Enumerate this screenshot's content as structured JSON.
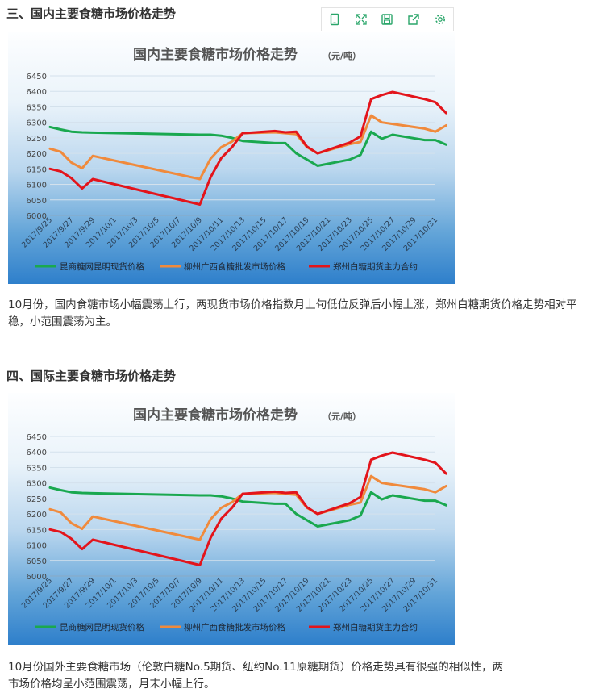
{
  "section3": {
    "heading": "三、国内主要食糖市场价格走势"
  },
  "toolbar": {
    "icons": [
      "tablet-icon",
      "fullscreen-icon",
      "save-icon",
      "share-icon",
      "settings-icon"
    ]
  },
  "paragraph1": "10月份，国内食糖市场小幅震荡上行，两现货市场价格指数月上旬低位反弹后小幅上涨，郑州白糖期货价格走势相对平稳，小范围震荡为主。",
  "section4": {
    "heading": "四、国际主要食糖市场价格走势"
  },
  "paragraph2_line1": "10月份国外主要食糖市场（伦敦白糖No.5期货、纽约No.11原糖期货）价格走势具有很强的相似性，两",
  "paragraph2_line2": "市场价格均呈小范围震荡，月末小幅上行。",
  "chart_data": [
    {
      "type": "line",
      "title": "国内主要食糖市场价格走势",
      "unit": "（元/吨）",
      "x": [
        "2017/9/25",
        "2017/9/26",
        "2017/9/27",
        "2017/9/28",
        "2017/9/29",
        "2017/10/9",
        "2017/10/10",
        "2017/10/11",
        "2017/10/12",
        "2017/10/13",
        "2017/10/16",
        "2017/10/17",
        "2017/10/18",
        "2017/10/19",
        "2017/10/20",
        "2017/10/23",
        "2017/10/24",
        "2017/10/25",
        "2017/10/26",
        "2017/10/27",
        "2017/10/30",
        "2017/10/31",
        "2017/11/1"
      ],
      "xticks": [
        "2017/9/25",
        "2017/9/27",
        "2017/9/29",
        "2017/10/1",
        "2017/10/3",
        "2017/10/5",
        "2017/10/7",
        "2017/10/9",
        "2017/10/11",
        "2017/10/13",
        "2017/10/15",
        "2017/10/17",
        "2017/10/19",
        "2017/10/21",
        "2017/10/23",
        "2017/10/25",
        "2017/10/27",
        "2017/10/29",
        "2017/10/31"
      ],
      "ylim": [
        6000,
        6450
      ],
      "yticks": [
        6000,
        6050,
        6100,
        6150,
        6200,
        6250,
        6300,
        6350,
        6400,
        6450
      ],
      "series": [
        {
          "name": "昆商糖网昆明现货价格",
          "color": "#1aa84f",
          "values": [
            6285,
            6277,
            6270,
            6268,
            6267,
            6260,
            6260,
            6257,
            6250,
            6240,
            6233,
            6233,
            6200,
            6180,
            6160,
            6180,
            6195,
            6270,
            6247,
            6260,
            6243,
            6243,
            6228
          ]
        },
        {
          "name": "柳州广西食糖批发市场价格",
          "color": "#f08a3c",
          "values": [
            6215,
            6205,
            6170,
            6152,
            6192,
            6117,
            6183,
            6220,
            6238,
            6265,
            6268,
            6265,
            6262,
            6220,
            6200,
            6230,
            6237,
            6322,
            6300,
            6295,
            6280,
            6270,
            6290
          ]
        },
        {
          "name": "郑州白糖期货主力合约",
          "color": "#e3141b",
          "values": [
            6150,
            6142,
            6120,
            6087,
            6117,
            6035,
            6123,
            6185,
            6220,
            6265,
            6272,
            6268,
            6270,
            6222,
            6200,
            6235,
            6255,
            6375,
            6388,
            6398,
            6375,
            6365,
            6330
          ]
        }
      ],
      "legend": "bottom",
      "grid": true
    },
    {
      "type": "line",
      "title": "国内主要食糖市场价格走势",
      "unit": "（元/吨）",
      "x": [
        "2017/9/25",
        "2017/9/26",
        "2017/9/27",
        "2017/9/28",
        "2017/9/29",
        "2017/10/9",
        "2017/10/10",
        "2017/10/11",
        "2017/10/12",
        "2017/10/13",
        "2017/10/16",
        "2017/10/17",
        "2017/10/18",
        "2017/10/19",
        "2017/10/20",
        "2017/10/23",
        "2017/10/24",
        "2017/10/25",
        "2017/10/26",
        "2017/10/27",
        "2017/10/30",
        "2017/10/31",
        "2017/11/1"
      ],
      "xticks": [
        "2017/9/25",
        "2017/9/27",
        "2017/9/29",
        "2017/10/1",
        "2017/10/3",
        "2017/10/5",
        "2017/10/7",
        "2017/10/9",
        "2017/10/11",
        "2017/10/13",
        "2017/10/15",
        "2017/10/17",
        "2017/10/19",
        "2017/10/21",
        "2017/10/23",
        "2017/10/25",
        "2017/10/27",
        "2017/10/29",
        "2017/10/31"
      ],
      "ylim": [
        6000,
        6450
      ],
      "yticks": [
        6000,
        6050,
        6100,
        6150,
        6200,
        6250,
        6300,
        6350,
        6400,
        6450
      ],
      "series": [
        {
          "name": "昆商糖网昆明现货价格",
          "color": "#1aa84f",
          "values": [
            6285,
            6277,
            6270,
            6268,
            6267,
            6260,
            6260,
            6257,
            6250,
            6240,
            6233,
            6233,
            6200,
            6180,
            6160,
            6180,
            6195,
            6270,
            6247,
            6260,
            6243,
            6243,
            6228
          ]
        },
        {
          "name": "柳州广西食糖批发市场价格",
          "color": "#f08a3c",
          "values": [
            6215,
            6205,
            6170,
            6152,
            6192,
            6117,
            6183,
            6220,
            6238,
            6265,
            6268,
            6265,
            6262,
            6220,
            6200,
            6230,
            6237,
            6322,
            6300,
            6295,
            6280,
            6270,
            6290
          ]
        },
        {
          "name": "郑州白糖期货主力合约",
          "color": "#e3141b",
          "values": [
            6150,
            6142,
            6120,
            6087,
            6117,
            6035,
            6123,
            6185,
            6220,
            6265,
            6272,
            6268,
            6270,
            6222,
            6200,
            6235,
            6255,
            6375,
            6388,
            6398,
            6375,
            6365,
            6330
          ]
        }
      ],
      "legend": "bottom",
      "grid": true
    }
  ]
}
